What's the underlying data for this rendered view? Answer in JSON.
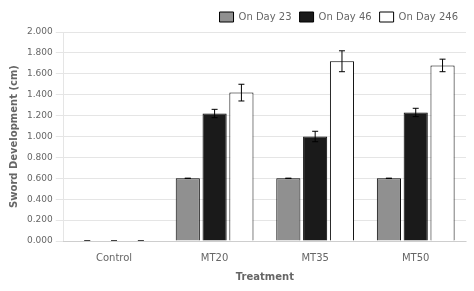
{
  "chart_data": {
    "type": "bar",
    "categories": [
      "Control",
      "MT20",
      "MT35",
      "MT50"
    ],
    "series": [
      {
        "name": "On Day 23",
        "color": "#909090",
        "values": [
          0.0,
          0.6,
          0.6,
          0.6
        ],
        "errors": [
          0.0,
          0.0,
          0.0,
          0.0
        ]
      },
      {
        "name": "On Day 46",
        "color": "#1a1a1a",
        "values": [
          0.0,
          1.22,
          1.0,
          1.23
        ],
        "errors": [
          0.0,
          0.04,
          0.05,
          0.04
        ]
      },
      {
        "name": "On Day 246",
        "color": "#ffffff",
        "values": [
          0.0,
          1.42,
          1.72,
          1.68
        ],
        "errors": [
          0.0,
          0.08,
          0.1,
          0.06
        ]
      }
    ],
    "xlabel": "Treatment",
    "ylabel": "Sword Development (cm)",
    "ylim": [
      0.0,
      2.0
    ],
    "yticks": [
      {
        "value": 0.0,
        "label": "0.000"
      },
      {
        "value": 0.2,
        "label": "0.200"
      },
      {
        "value": 0.4,
        "label": "0.400"
      },
      {
        "value": 0.6,
        "label": "0.600"
      },
      {
        "value": 0.8,
        "label": "0.800"
      },
      {
        "value": 1.0,
        "label": "1.000"
      },
      {
        "value": 1.2,
        "label": "1.200"
      },
      {
        "value": 1.4,
        "label": "1.400"
      },
      {
        "value": 1.6,
        "label": "1.600"
      },
      {
        "value": 1.8,
        "label": "1.800"
      },
      {
        "value": 2.0,
        "label": "2.000"
      }
    ],
    "grid": "y",
    "legend": "upper right"
  }
}
